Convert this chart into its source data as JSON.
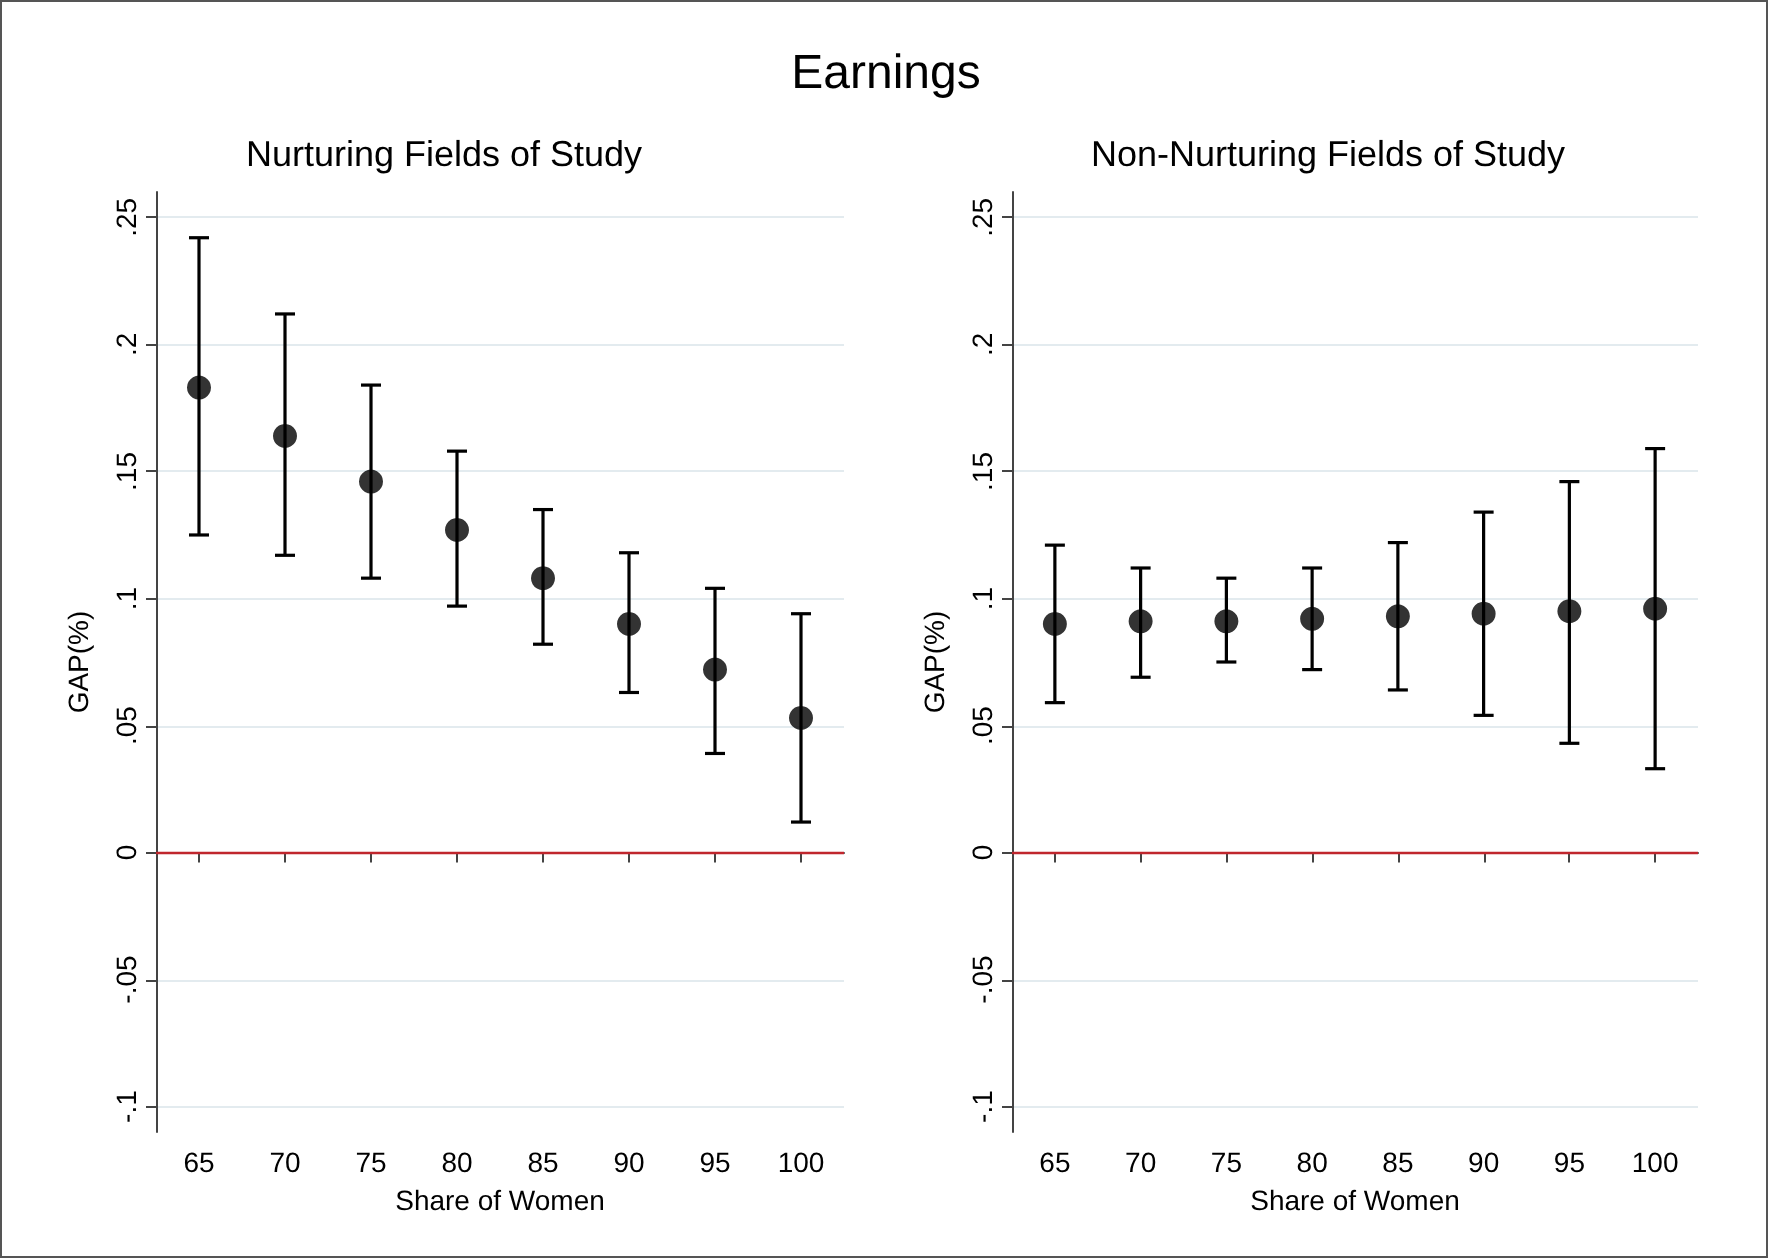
{
  "chart_data": [
    {
      "type": "scatter",
      "title": "Earnings",
      "subtitle": "Nurturing Fields of Study",
      "xlabel": "Share of Women",
      "ylabel": "GAP(%)",
      "categories": [
        "65",
        "70",
        "75",
        "80",
        "85",
        "90",
        "95",
        "100"
      ],
      "values": [
        0.183,
        0.164,
        0.146,
        0.127,
        0.108,
        0.09,
        0.072,
        0.053
      ],
      "errors": [
        [
          0.125,
          0.242
        ],
        [
          0.117,
          0.212
        ],
        [
          0.108,
          0.184
        ],
        [
          0.097,
          0.158
        ],
        [
          0.082,
          0.135
        ],
        [
          0.063,
          0.118
        ],
        [
          0.039,
          0.104
        ],
        [
          0.012,
          0.094
        ]
      ],
      "color": "#000000",
      "marker": "circle",
      "ylim": [
        -0.11,
        0.26
      ],
      "yticks": [
        {
          "value": -0.1,
          "label": "-.1"
        },
        {
          "value": -0.05,
          "label": "-.05"
        },
        {
          "value": 0,
          "label": "0"
        },
        {
          "value": 0.05,
          "label": ".05"
        },
        {
          "value": 0.1,
          "label": ".1"
        },
        {
          "value": 0.15,
          "label": ".15"
        },
        {
          "value": 0.2,
          "label": ".2"
        },
        {
          "value": 0.25,
          "label": ".25"
        }
      ],
      "grid": "y",
      "ref_lines": [
        {
          "axis": "y",
          "value": 0,
          "color": "#c0262d"
        }
      ]
    },
    {
      "type": "scatter",
      "title": "Non-Nurturing Fields of Study",
      "xlabel": "Share of Women",
      "ylabel": "GAP(%)",
      "categories": [
        "65",
        "70",
        "75",
        "80",
        "85",
        "90",
        "95",
        "100"
      ],
      "values": [
        0.09,
        0.091,
        0.091,
        0.092,
        0.093,
        0.094,
        0.095,
        0.096
      ],
      "errors": [
        [
          0.059,
          0.121
        ],
        [
          0.069,
          0.112
        ],
        [
          0.075,
          0.108
        ],
        [
          0.072,
          0.112
        ],
        [
          0.064,
          0.122
        ],
        [
          0.054,
          0.134
        ],
        [
          0.043,
          0.146
        ],
        [
          0.033,
          0.159
        ]
      ],
      "color": "#000000",
      "marker": "circle",
      "ylim": [
        -0.11,
        0.26
      ],
      "yticks": [
        {
          "value": -0.1,
          "label": "-.1"
        },
        {
          "value": -0.05,
          "label": "-.05"
        },
        {
          "value": 0,
          "label": "0"
        },
        {
          "value": 0.05,
          "label": ".05"
        },
        {
          "value": 0.1,
          "label": ".1"
        },
        {
          "value": 0.15,
          "label": ".15"
        },
        {
          "value": 0.2,
          "label": ".2"
        },
        {
          "value": 0.25,
          "label": ".25"
        }
      ],
      "grid": "y",
      "ref_lines": [
        {
          "axis": "y",
          "value": 0,
          "color": "#c0262d"
        }
      ]
    }
  ]
}
